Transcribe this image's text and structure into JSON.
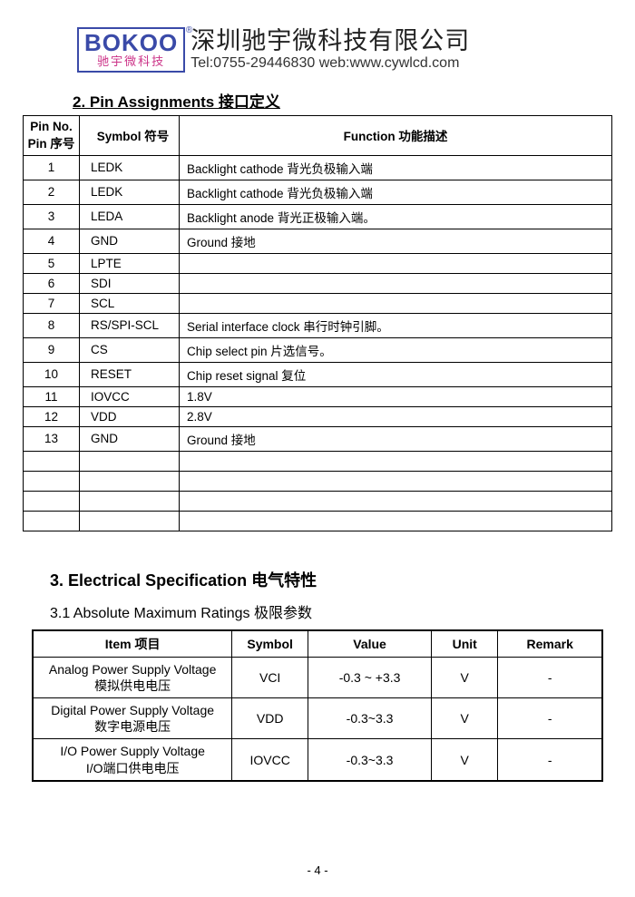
{
  "header": {
    "logo_top": "BOKOO",
    "logo_bottom": "驰宇微科技",
    "logo_r": "®",
    "company_name": "深圳驰宇微科技有限公司",
    "contact": "Tel:0755-29446830 web:www.cywlcd.com"
  },
  "section2": {
    "title": "2. Pin Assignments  接口定义",
    "headers": {
      "pin": "Pin No.\nPin 序号",
      "symbol": "Symbol 符号",
      "func": "Function 功能描述"
    },
    "rows": [
      {
        "pin": "1",
        "symbol": "LEDK",
        "func": "Backlight cathode  背光负极输入端"
      },
      {
        "pin": "2",
        "symbol": "LEDK",
        "func": "Backlight cathode  背光负极输入端"
      },
      {
        "pin": "3",
        "symbol": "LEDA",
        "func": "Backlight anode 背光正极输入端。"
      },
      {
        "pin": "4",
        "symbol": "GND",
        "func": "Ground  接地"
      },
      {
        "pin": "5",
        "symbol": "LPTE",
        "func": ""
      },
      {
        "pin": "6",
        "symbol": "SDI",
        "func": ""
      },
      {
        "pin": "7",
        "symbol": "SCL",
        "func": ""
      },
      {
        "pin": "8",
        "symbol": "RS/SPI-SCL",
        "func": "Serial interface clock  串行时钟引脚。"
      },
      {
        "pin": "9",
        "symbol": "CS",
        "func": "Chip select pin  片选信号。"
      },
      {
        "pin": "10",
        "symbol": "RESET",
        "func": "Chip reset signal  复位"
      },
      {
        "pin": "11",
        "symbol": "IOVCC",
        "func": "1.8V"
      },
      {
        "pin": "12",
        "symbol": "VDD",
        "func": "2.8V"
      },
      {
        "pin": "13",
        "symbol": "GND",
        "func": "Ground  接地"
      },
      {
        "pin": "",
        "symbol": "",
        "func": ""
      },
      {
        "pin": "",
        "symbol": "",
        "func": ""
      },
      {
        "pin": "",
        "symbol": "",
        "func": ""
      },
      {
        "pin": "",
        "symbol": "",
        "func": ""
      }
    ]
  },
  "section3": {
    "title": "3. Electrical Specification  电气特性",
    "sub": "3.1   Absolute Maximum Ratings  极限参数",
    "headers": {
      "item": "Item  项目",
      "symbol": "Symbol",
      "value": "Value",
      "unit": "Unit",
      "remark": "Remark"
    },
    "rows": [
      {
        "item_en": "Analog Power Supply Voltage",
        "item_cn": "模拟供电电压",
        "symbol": "VCI",
        "value": "-0.3 ~ +3.3",
        "unit": "V",
        "remark": "-"
      },
      {
        "item_en": "Digital Power Supply Voltage",
        "item_cn": "数字电源电压",
        "symbol": "VDD",
        "value": "-0.3~3.3",
        "unit": "V",
        "remark": "-"
      },
      {
        "item_en": "I/O Power Supply Voltage",
        "item_cn": "I/O端口供电电压",
        "symbol": "IOVCC",
        "value": "-0.3~3.3",
        "unit": "V",
        "remark": "-"
      }
    ]
  },
  "page_number": "- 4 -"
}
